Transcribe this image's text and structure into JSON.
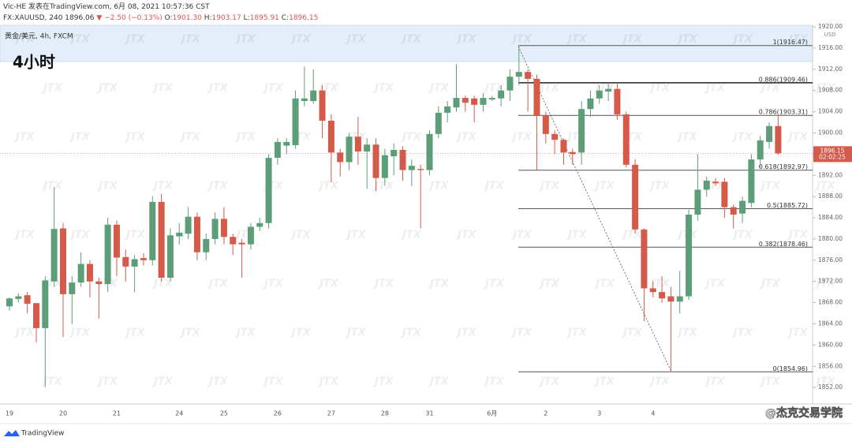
{
  "header": {
    "line1": "Vic-HE 发表在TradingView.com, 6月 08, 2021 10:57:36 CST",
    "symbol": "FX:XAUUSD, 240",
    "last": "1896.06",
    "change": "−2.50 (−0.13%)",
    "ohlc": [
      {
        "key": "O:",
        "value": "1901.30"
      },
      {
        "key": "H:",
        "value": "1903.17"
      },
      {
        "key": "L:",
        "value": "1895.91"
      },
      {
        "key": "C:",
        "value": "1896.15"
      }
    ]
  },
  "footer": {
    "brand": "TradingView",
    "credit": "@杰克交易学院",
    "watermark": "JTX"
  },
  "chart_data": {
    "type": "candlestick",
    "title": "黄金/美元, 4h, FXCM",
    "annotation": "4小时",
    "currency": "USD",
    "up_color": "#5d9e78",
    "down_color": "#d45a4a",
    "categories": [
      "19",
      null,
      null,
      null,
      null,
      null,
      "20",
      null,
      null,
      null,
      null,
      null,
      "21",
      null,
      null,
      null,
      null,
      null,
      null,
      "24",
      null,
      null,
      null,
      null,
      "25",
      null,
      null,
      null,
      null,
      null,
      "26",
      null,
      null,
      null,
      null,
      null,
      "27",
      null,
      null,
      null,
      null,
      null,
      "28",
      null,
      null,
      null,
      null,
      "31",
      null,
      null,
      null,
      null,
      null,
      null,
      "6月",
      null,
      null,
      null,
      null,
      null,
      "2",
      null,
      null,
      null,
      null,
      null,
      "3",
      null,
      null,
      null,
      null,
      null,
      "4",
      null,
      null,
      null,
      null,
      null,
      null,
      null,
      null,
      null,
      null,
      null,
      null,
      null,
      null
    ],
    "open": [
      1867.3,
      1868.7,
      1869.4,
      1867.9,
      1863.2,
      1872,
      1882,
      1869.6,
      1871.8,
      1875.3,
      1872,
      1871.5,
      1882.7,
      1876.6,
      1874.8,
      1876.4,
      1876,
      1887,
      1872.7,
      1880.5,
      1881,
      1884.2,
      1877.5,
      1880,
      1883.8,
      1880.4,
      1879.3,
      1879,
      1882.3,
      1883,
      1895.3,
      1897.6,
      1897.7,
      1906,
      1906,
      1908,
      1902.3,
      1896.3,
      1894.5,
      1899.3,
      1896.5,
      1897.8,
      1891.5,
      1895.6,
      1896.8,
      1893,
      1893.2,
      1893,
      1899.8,
      1903.8,
      1904.8,
      1906.6,
      1906.5,
      1905.3,
      1906.3,
      1906.5,
      1908,
      1910.6,
      1911.5,
      1910.2,
      1903.2,
      1899.8,
      1898.7,
      1896.4,
      1896.3,
      1904.5,
      1906.5,
      1907.8,
      1908.3,
      1903.5,
      1894,
      1881.8,
      1870.7,
      1870,
      1869.2,
      1868.2,
      1869.2,
      1884.6,
      1889.3,
      1890.8,
      1890.8,
      1886,
      1884.8,
      1886.8,
      1895,
      1898.3,
      1901.3
    ],
    "high": [
      1869,
      1869.8,
      1870,
      1868,
      1873,
      1889.8,
      1883,
      1873,
      1877.5,
      1876,
      1872.7,
      1884,
      1883.5,
      1878,
      1877,
      1877.3,
      1888,
      1888.5,
      1882,
      1883,
      1886,
      1885,
      1881,
      1885,
      1886,
      1881,
      1880,
      1883,
      1884,
      1896,
      1899,
      1899,
      1908,
      1912.5,
      1912,
      1909,
      1903.5,
      1897,
      1900,
      1903,
      1899,
      1899,
      1897,
      1898,
      1897.5,
      1895,
      1894,
      1900.5,
      1905,
      1906,
      1913,
      1907,
      1907,
      1907.5,
      1907,
      1909,
      1912,
      1916.47,
      1912,
      1911,
      1904,
      1900.5,
      1899,
      1897,
      1906,
      1908,
      1909,
      1909.5,
      1909.5,
      1904,
      1895,
      1882,
      1872,
      1873,
      1871,
      1874,
      1885.5,
      1896,
      1891.8,
      1891.5,
      1891.5,
      1886.5,
      1888,
      1896,
      1899.5,
      1902,
      1903.17
    ],
    "low": [
      1866.5,
      1868,
      1866,
      1860.5,
      1852.1,
      1871,
      1861.5,
      1864,
      1871,
      1869,
      1865,
      1870,
      1873,
      1872,
      1870,
      1875,
      1875,
      1872,
      1872,
      1879,
      1880,
      1876,
      1876,
      1879,
      1879,
      1877,
      1872.7,
      1878,
      1881.5,
      1882,
      1894,
      1896,
      1897,
      1905,
      1905.5,
      1899,
      1890.7,
      1891.8,
      1893,
      1894,
      1889.5,
      1889,
      1890,
      1892,
      1891,
      1890,
      1882,
      1892,
      1899,
      1902,
      1904,
      1904,
      1902,
      1904,
      1906,
      1905,
      1906,
      1909,
      1904,
      1893,
      1898,
      1896,
      1894,
      1894,
      1894,
      1903,
      1905.5,
      1906,
      1902.5,
      1893.5,
      1881,
      1864.5,
      1869,
      1868,
      1854.96,
      1866,
      1868.5,
      1883.5,
      1888,
      1890,
      1884,
      1882,
      1883,
      1886,
      1893.5,
      1897,
      1895.91
    ],
    "close": [
      1868.8,
      1869.2,
      1867.8,
      1863.2,
      1872.2,
      1881.9,
      1869.6,
      1871.8,
      1875.3,
      1872,
      1871.5,
      1882.7,
      1876.5,
      1874.8,
      1876.2,
      1876,
      1887,
      1872.7,
      1880.7,
      1881.2,
      1884.2,
      1877.5,
      1880,
      1883.8,
      1880.4,
      1879,
      1879,
      1882.3,
      1883,
      1895.3,
      1898.3,
      1898.3,
      1906.5,
      1906.5,
      1908,
      1902.3,
      1896.3,
      1894.5,
      1899.3,
      1896.5,
      1897.8,
      1891.5,
      1895.8,
      1896.8,
      1893,
      1893.8,
      1893,
      1899.8,
      1903.8,
      1905,
      1906.6,
      1905.7,
      1905.3,
      1906.6,
      1906.6,
      1908,
      1910.6,
      1911.5,
      1910.2,
      1903.2,
      1899.8,
      1898.7,
      1896.3,
      1896,
      1904.5,
      1906.5,
      1908,
      1908.3,
      1903.5,
      1894,
      1881.8,
      1870.7,
      1870,
      1868.8,
      1868.2,
      1869.2,
      1884.6,
      1889.3,
      1891,
      1890.5,
      1886,
      1884.6,
      1887.2,
      1895,
      1898.6,
      1901.3,
      1896.15
    ],
    "ylim": [
      1848.9,
      1920.3
    ],
    "yticks": [
      {
        "value": 1852,
        "label": "1852.00"
      },
      {
        "value": 1856,
        "label": "1856.00"
      },
      {
        "value": 1860,
        "label": "1860.00"
      },
      {
        "value": 1864,
        "label": "1864.00"
      },
      {
        "value": 1868,
        "label": "1868.00"
      },
      {
        "value": 1872,
        "label": "1872.00"
      },
      {
        "value": 1876,
        "label": "1876.00"
      },
      {
        "value": 1880,
        "label": "1880.00"
      },
      {
        "value": 1884,
        "label": "1884.00"
      },
      {
        "value": 1888,
        "label": "1888.00"
      },
      {
        "value": 1892,
        "label": "1892.00"
      },
      {
        "value": 1896,
        "label": "1896.00"
      },
      {
        "value": 1900,
        "label": "1900.00"
      },
      {
        "value": 1904,
        "label": "1904.00"
      },
      {
        "value": 1908,
        "label": "1908.00"
      },
      {
        "value": 1912,
        "label": "1912.00"
      },
      {
        "value": 1916,
        "label": "1916.00"
      },
      {
        "value": 1920,
        "label": "1920.00"
      }
    ],
    "price_line": 1896.15,
    "countdown": "02:02:25",
    "fib_levels": [
      {
        "value": 1916.47,
        "label": "1(1916.47)"
      },
      {
        "value": 1909.46,
        "label": "0.886(1909.46)"
      },
      {
        "value": 1903.31,
        "label": "0.786(1903.31)"
      },
      {
        "value": 1892.97,
        "label": "0.618(1892.97)"
      },
      {
        "value": 1885.72,
        "label": "0.5(1885.72)"
      },
      {
        "value": 1878.46,
        "label": "0.382(1878.46)"
      },
      {
        "value": 1854.96,
        "label": "0(1854.96)"
      }
    ]
  }
}
